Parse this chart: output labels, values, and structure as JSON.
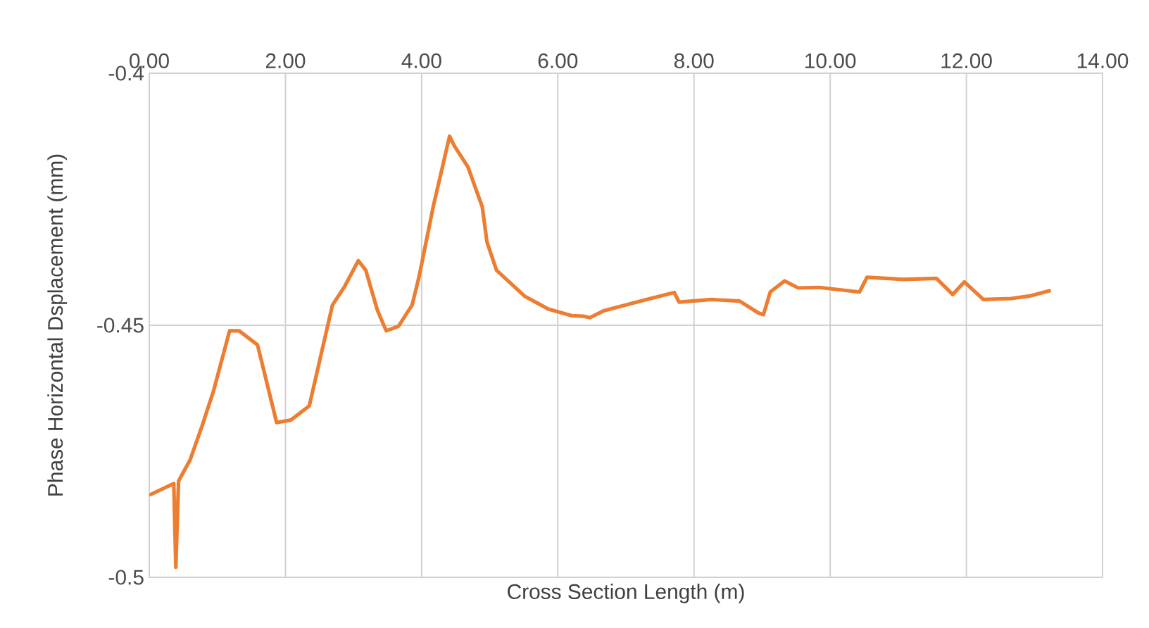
{
  "chart_data": {
    "type": "line",
    "xlabel": "Cross Section Length (m)",
    "ylabel": "Phase Horizontal Dsplacement (mm)",
    "xlim": [
      0,
      14
    ],
    "ylim": [
      -0.5,
      -0.4
    ],
    "xticks": [
      {
        "value": 0,
        "label": "0.00"
      },
      {
        "value": 2,
        "label": "2.00"
      },
      {
        "value": 4,
        "label": "4.00"
      },
      {
        "value": 6,
        "label": "6.00"
      },
      {
        "value": 8,
        "label": "8.00"
      },
      {
        "value": 10,
        "label": "10.00"
      },
      {
        "value": 12,
        "label": "12.00"
      },
      {
        "value": 14,
        "label": "14.00"
      }
    ],
    "yticks": [
      -0.5,
      -0.45,
      -0.4
    ],
    "grid": true,
    "series": [
      {
        "color": "#ed7d31",
        "x": [
          0,
          0.36,
          0.39,
          0.43,
          0.6,
          0.77,
          0.94,
          1.18,
          1.32,
          1.59,
          1.87,
          2.08,
          2.35,
          2.69,
          2.87,
          3.07,
          3.18,
          3.35,
          3.48,
          3.66,
          3.86,
          3.96,
          4.17,
          4.41,
          4.48,
          4.68,
          4.89,
          4.96,
          5.1,
          5.51,
          5.86,
          6.2,
          6.37,
          6.47,
          6.68,
          7.3,
          7.71,
          7.78,
          8.26,
          8.67,
          8.95,
          9.02,
          9.12,
          9.33,
          9.53,
          9.84,
          10.43,
          10.54,
          11.08,
          11.56,
          11.8,
          11.97,
          12.25,
          12.66,
          12.93,
          13.24
        ],
        "values": [
          -0.4837,
          -0.4814,
          -0.498,
          -0.4809,
          -0.4767,
          -0.4702,
          -0.4632,
          -0.4511,
          -0.4511,
          -0.4539,
          -0.4693,
          -0.4688,
          -0.466,
          -0.446,
          -0.4423,
          -0.4372,
          -0.4391,
          -0.447,
          -0.4511,
          -0.4502,
          -0.446,
          -0.4405,
          -0.4265,
          -0.4125,
          -0.4144,
          -0.4186,
          -0.4265,
          -0.4335,
          -0.4391,
          -0.4442,
          -0.4468,
          -0.4481,
          -0.4482,
          -0.4485,
          -0.4471,
          -0.4449,
          -0.4435,
          -0.4454,
          -0.4449,
          -0.4452,
          -0.4476,
          -0.4479,
          -0.4434,
          -0.4412,
          -0.4426,
          -0.4425,
          -0.4434,
          -0.4405,
          -0.4409,
          -0.4407,
          -0.4439,
          -0.4414,
          -0.4449,
          -0.4447,
          -0.4442,
          -0.4431
        ]
      }
    ]
  }
}
